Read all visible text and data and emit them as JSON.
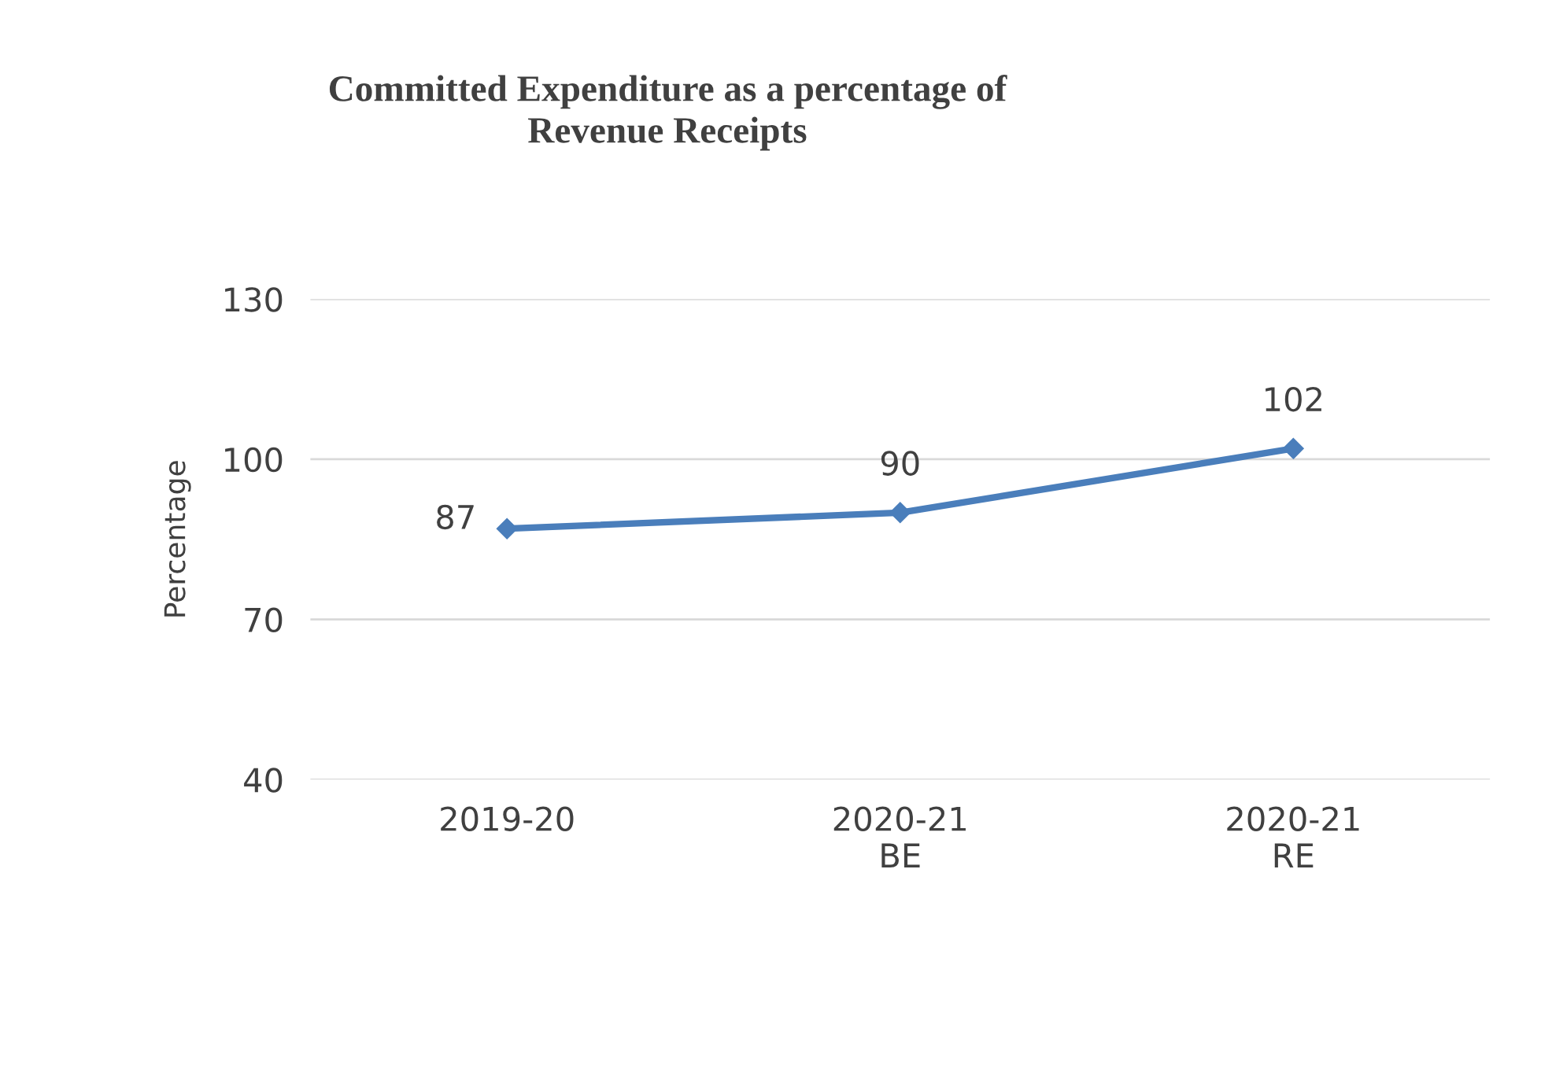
{
  "chart_data": {
    "type": "line",
    "title": "Committed Expenditure as a percentage of\nRevenue Receipts",
    "ylabel": "Percentage",
    "categories": [
      "2019-20",
      "2020-21\nBE",
      "2020-21\nRE"
    ],
    "series": [
      {
        "color": "#4a7ebb",
        "values": [
          87,
          90,
          102
        ]
      }
    ],
    "ylim": [
      40,
      130
    ],
    "yticks": [
      40,
      70,
      100,
      130
    ],
    "grid": "y",
    "marker": "diamond",
    "line_style": "solid",
    "data_labels": true
  }
}
